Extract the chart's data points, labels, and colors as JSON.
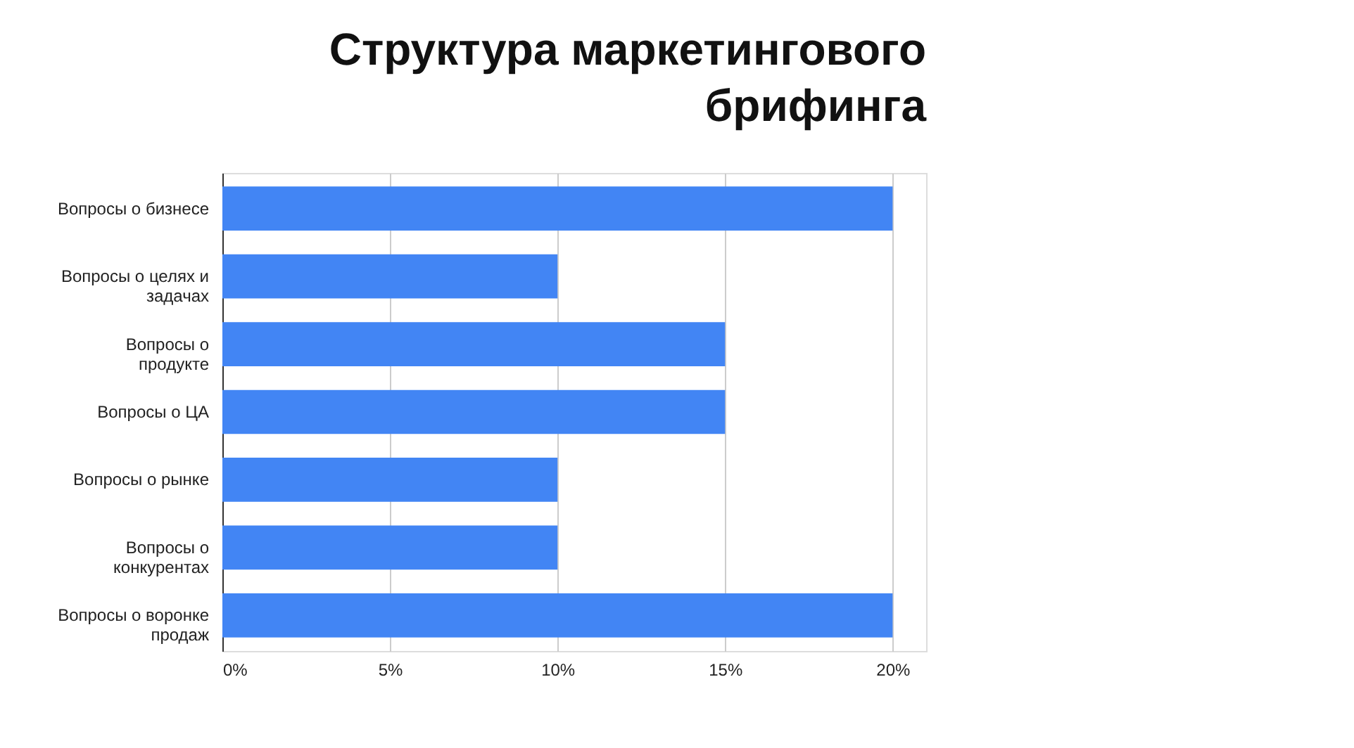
{
  "chart_data": {
    "type": "bar",
    "orientation": "horizontal",
    "title": "Структура маркетингового брифинга",
    "categories": [
      "Вопросы о бизнесе",
      "Вопросы о целях и задачах",
      "Вопросы о продукте",
      "Вопросы о ЦА",
      "Вопросы о рынке",
      "Вопросы о конкурентах",
      "Вопросы о воронке продаж"
    ],
    "values": [
      20,
      10,
      15,
      15,
      10,
      10,
      20
    ],
    "color": "#4285f4",
    "xlim": [
      0,
      21
    ],
    "xticks": [
      {
        "value": 0,
        "label": "0%"
      },
      {
        "value": 5,
        "label": "5%"
      },
      {
        "value": 10,
        "label": "10%"
      },
      {
        "value": 15,
        "label": "15%"
      },
      {
        "value": 20,
        "label": "20%"
      }
    ],
    "grid": "x"
  }
}
